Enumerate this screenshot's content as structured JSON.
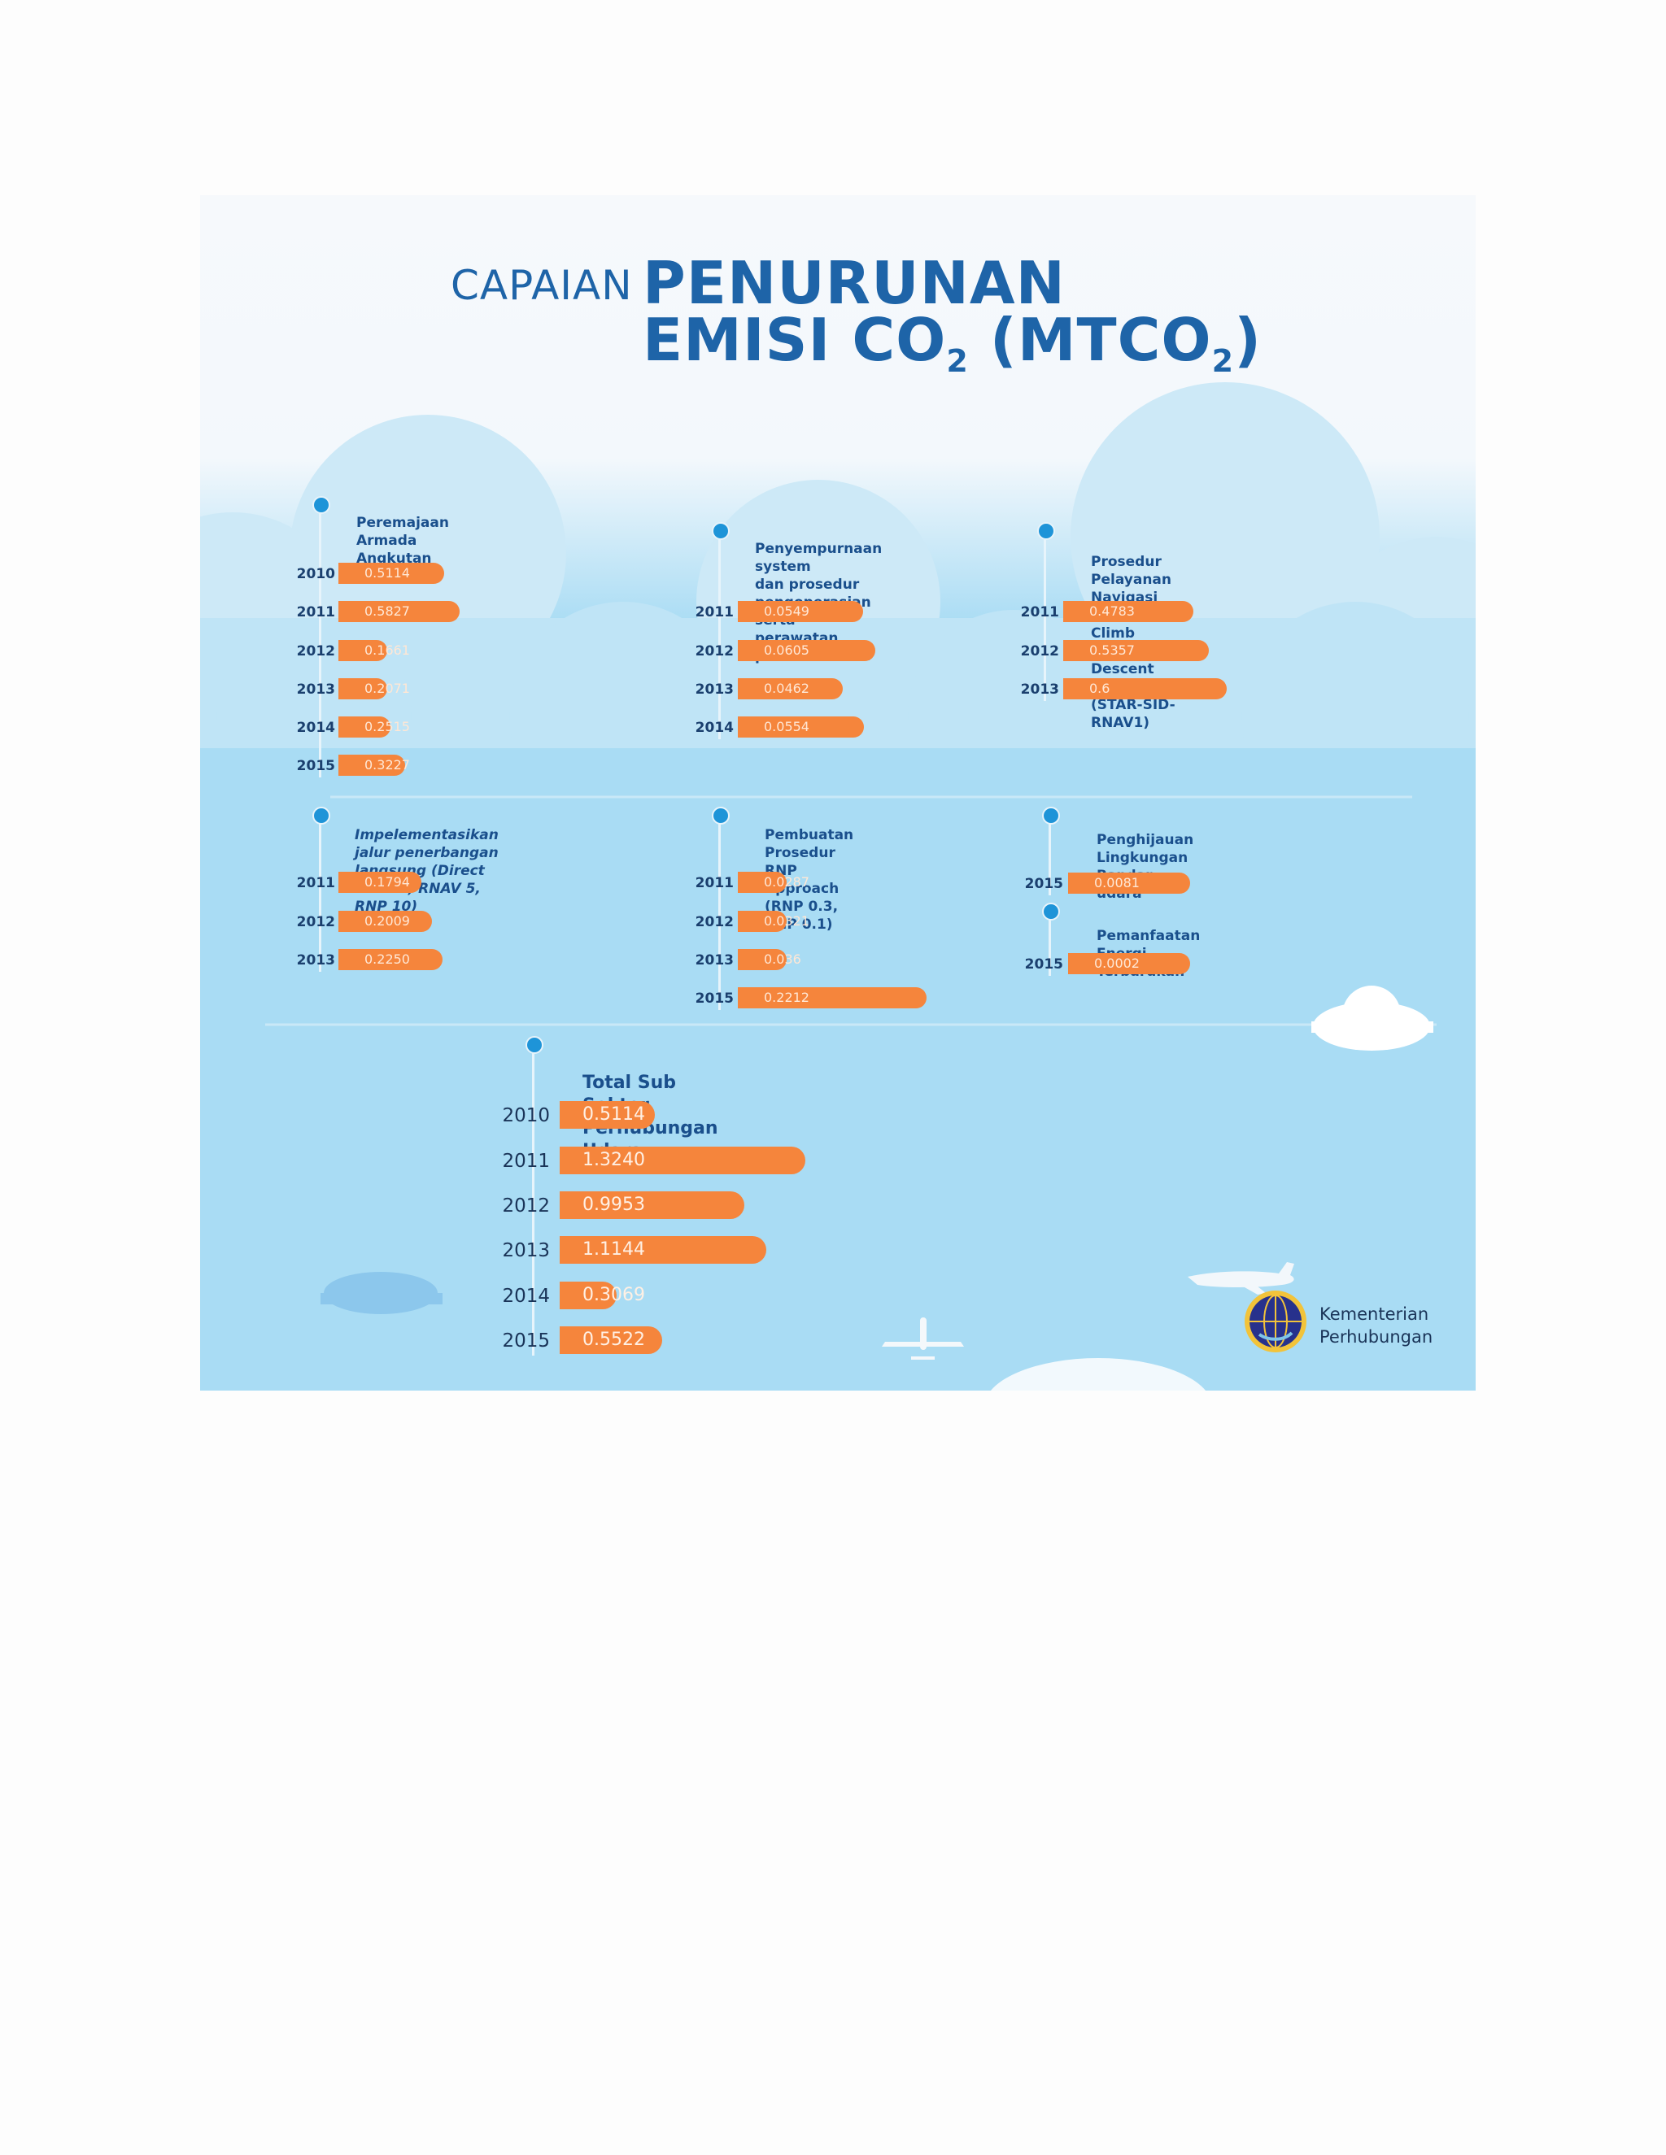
{
  "title": {
    "prefix": "CAPAIAN",
    "line1": "PENURUNAN",
    "line2_main": "EMISI CO",
    "line2_sub": "2",
    "line2_paren_open": " (MTCO",
    "line2_paren_sub": "2",
    "line2_paren_close": ")"
  },
  "logo": {
    "text": "Kementerian\nPerhubungan"
  },
  "colors": {
    "bar": "#f5853c",
    "title": "#1e64a8",
    "sky": "#a9dcf4",
    "dot": "#1e94d8"
  },
  "chart_data": [
    {
      "type": "bar",
      "title": "Peremajaan\nArmada Angkutan Udara",
      "categories": [
        "2010",
        "2011",
        "2012",
        "2013",
        "2014",
        "2015"
      ],
      "values": [
        0.5114,
        0.5827,
        0.1661,
        0.2071,
        0.2515,
        0.3227
      ],
      "labels": [
        "0.5114",
        "0.5827",
        "0.1661",
        "0.2071",
        "0.2515",
        "0.3227"
      ]
    },
    {
      "type": "bar",
      "title": "Penyempurnaan system\ndan prosedur pengoperasian\nserta perawatan pesawat udara",
      "categories": [
        "2011",
        "2012",
        "2013",
        "2014"
      ],
      "values": [
        0.0549,
        0.0605,
        0.0462,
        0.0554
      ],
      "labels": [
        "0.0549",
        "0.0605",
        "0.0462",
        "0.0554"
      ]
    },
    {
      "type": "bar",
      "title": "Prosedur Pelayanan Navigasi Continous Climb\nand Descent Operations (STAR-SID-RNAV1)",
      "categories": [
        "2011",
        "2012",
        "2013"
      ],
      "values": [
        0.4783,
        0.5357,
        0.6
      ],
      "labels": [
        "0.4783",
        "0.5357",
        "0.6"
      ]
    },
    {
      "type": "bar",
      "title": "Impelementasikan jalur penerbangan\nlangsung (Direct Routes, RNAV 5, RNP 10)",
      "categories": [
        "2011",
        "2012",
        "2013"
      ],
      "values": [
        0.1794,
        0.2009,
        0.225
      ],
      "labels": [
        "0.1794",
        "0.2009",
        "0.2250"
      ]
    },
    {
      "type": "bar",
      "title": "Pembuatan Prosedur RNP Approach\n(RNP 0.3, RNP 0.1)",
      "categories": [
        "2011",
        "2012",
        "2013",
        "2015"
      ],
      "values": [
        0.0287,
        0.0321,
        0.036,
        0.2212
      ],
      "labels": [
        "0.0287",
        "0.0321",
        "0.036",
        "0.2212"
      ]
    },
    {
      "type": "bar",
      "title": "Penghijauan Lingkungan\nBandar udara",
      "categories": [
        "2015"
      ],
      "values": [
        0.0081
      ],
      "labels": [
        "0.0081"
      ]
    },
    {
      "type": "bar",
      "title": "Pemanfaatan Energi Terbarukan",
      "categories": [
        "2015"
      ],
      "values": [
        0.0002
      ],
      "labels": [
        "0.0002"
      ]
    },
    {
      "type": "bar",
      "title": "Total Sub Sektor Perhubungan Udara",
      "categories": [
        "2010",
        "2011",
        "2012",
        "2013",
        "2014",
        "2015"
      ],
      "values": [
        0.5114,
        1.324,
        0.9953,
        1.1144,
        0.3069,
        0.5522
      ],
      "labels": [
        "0.5114",
        "1.3240",
        "0.9953",
        "1.1144",
        "0.3069",
        "0.5522"
      ]
    }
  ]
}
